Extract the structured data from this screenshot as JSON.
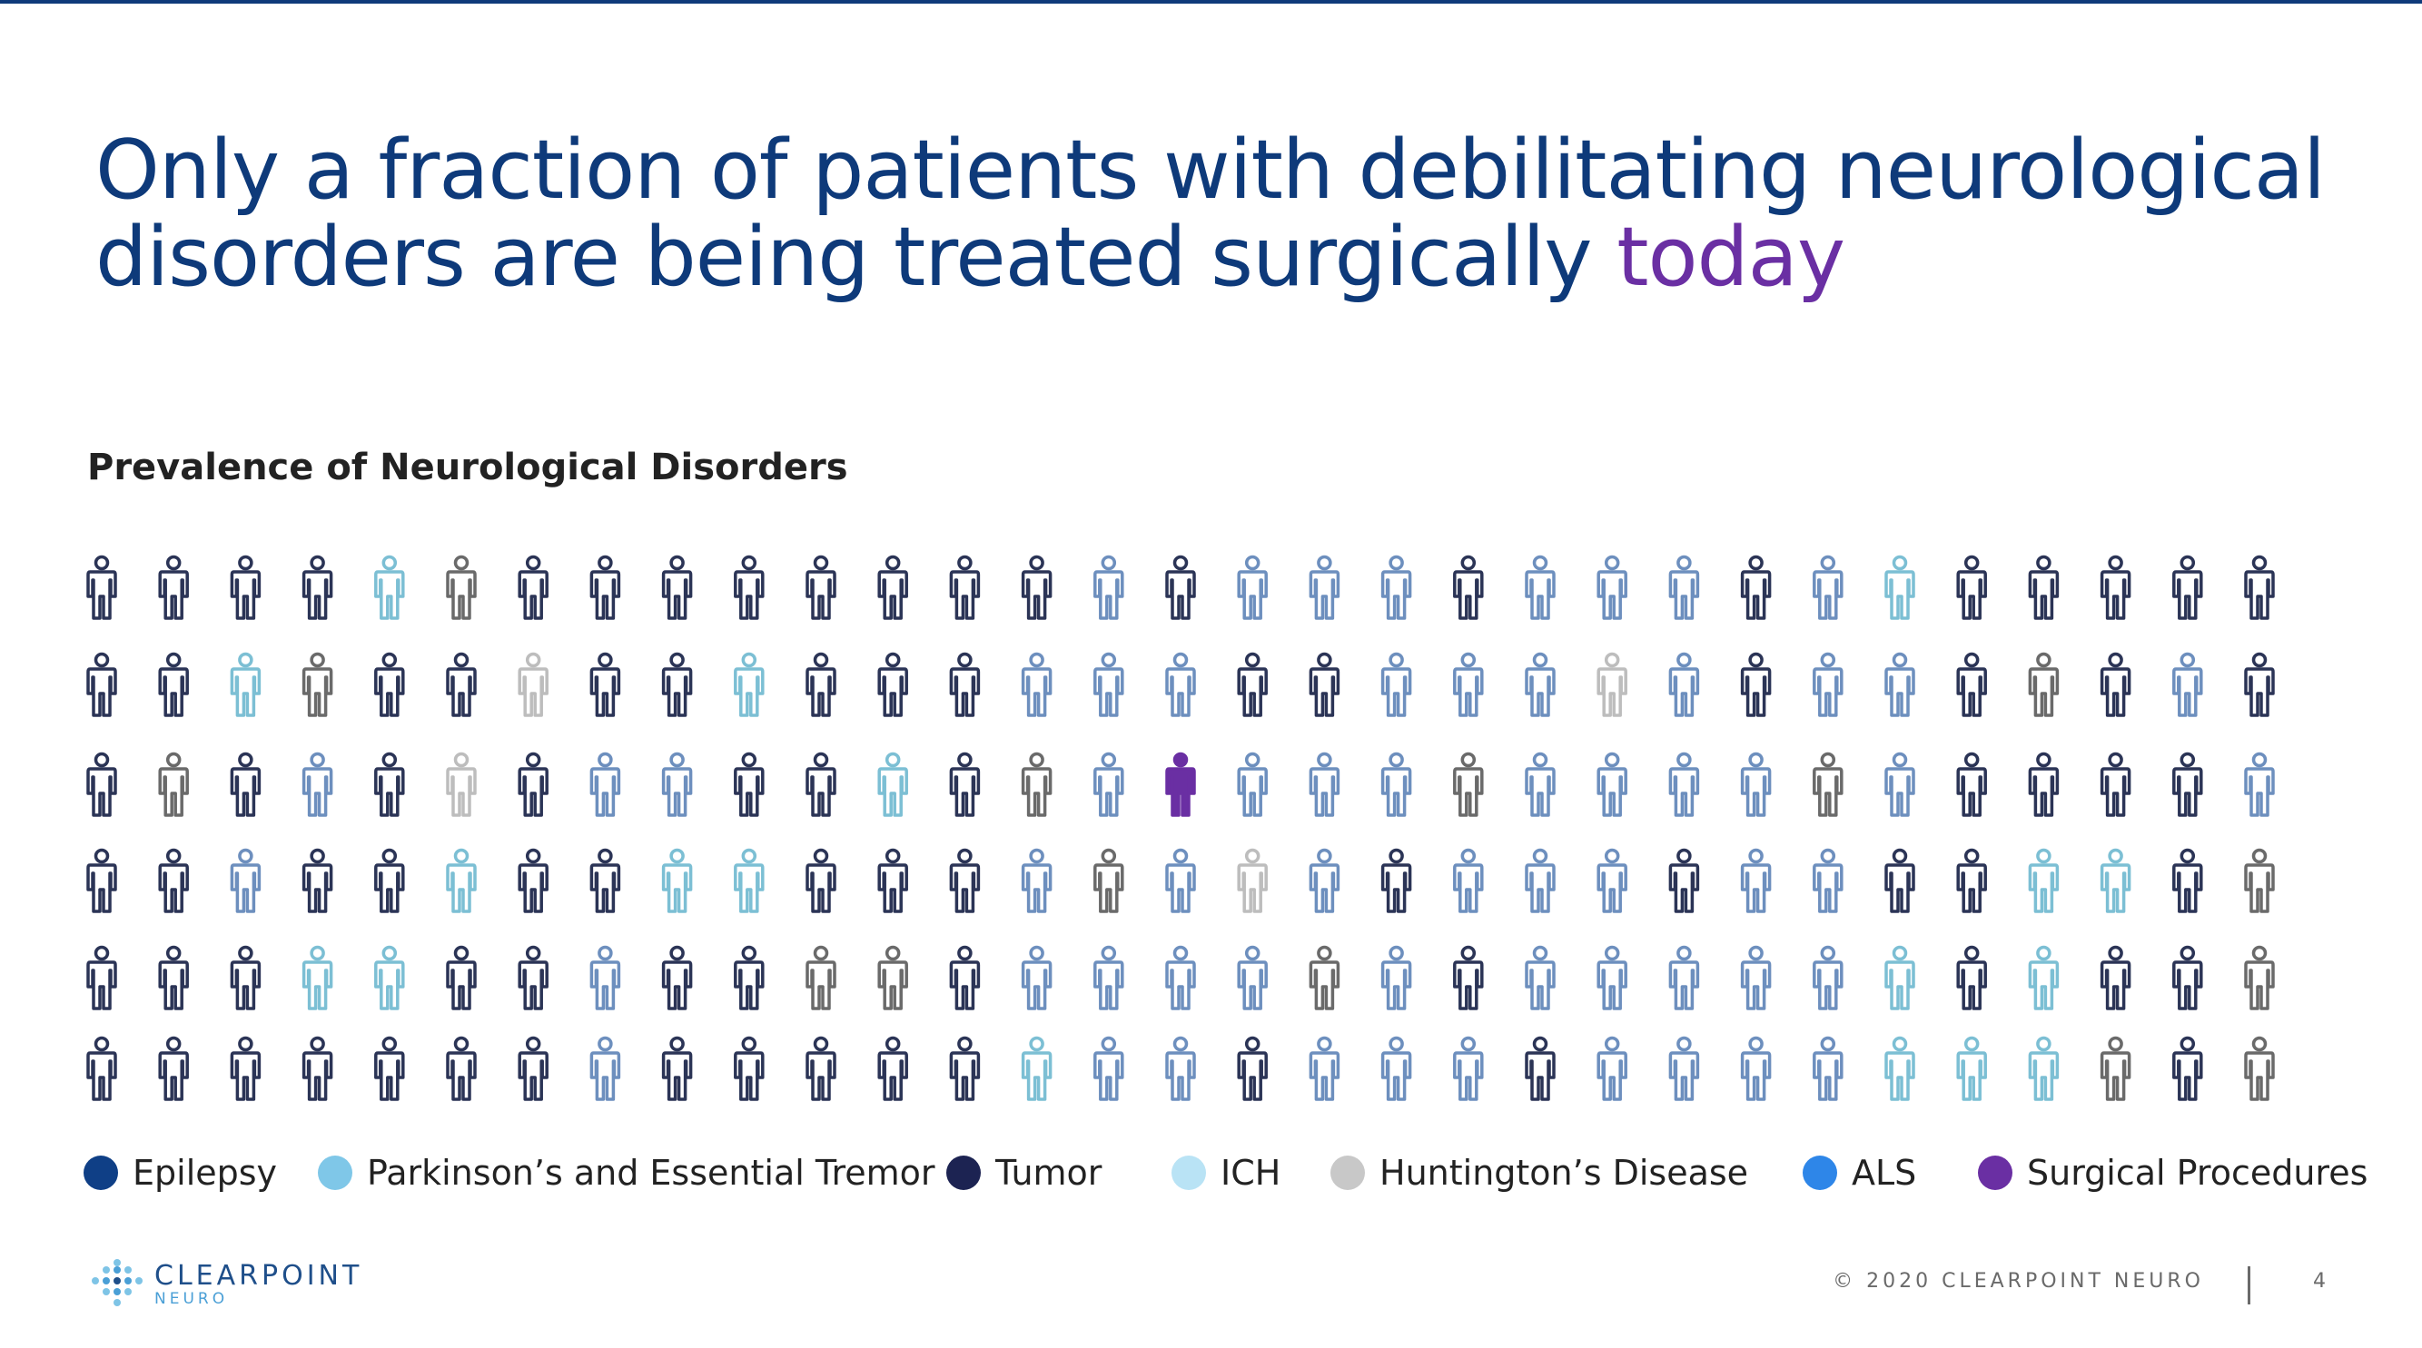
{
  "slide": {
    "title_main": "Only a fraction of patients with debilitating neurological disorders are being treated surgically ",
    "title_accent": "today",
    "logo_main": "CLEARPOINT",
    "logo_sub": "NEURO",
    "copyright": "© 2020 CLEARPOINT NEURO",
    "page_number": "4"
  },
  "chart_data": {
    "type": "pictogram",
    "title": "Prevalence of Neurological Disorders",
    "legend_position": "bottom",
    "columns": 31,
    "rows": 6,
    "legend": [
      {
        "key": "E",
        "name": "Epilepsy",
        "color": "#0f3f86"
      },
      {
        "key": "P",
        "name": "Parkinson’s and Essential Tremor",
        "color": "#7fc7e8"
      },
      {
        "key": "T",
        "name": "Tumor",
        "color": "#1c2352"
      },
      {
        "key": "I",
        "name": "ICH",
        "color": "#b9e3f5"
      },
      {
        "key": "H",
        "name": "Huntington’s Disease",
        "color": "#c8c8c8"
      },
      {
        "key": "A",
        "name": "ALS",
        "color": "#2e86e8"
      },
      {
        "key": "S",
        "name": "Surgical Procedures",
        "color": "#6a2fa3"
      }
    ],
    "figure_colors": {
      "N": "#2b3456",
      "B": "#6d8fbe",
      "G": "#6a6a6a",
      "L": "#bdbdbd",
      "C": "#7cbfd4",
      "S": "#6a2fa3"
    },
    "grid": [
      "NNNNCGNNNNNNNNBNBBBNBBBNBCNNNNN",
      "NNCGNNLNNCNNNBBBNNBBBLBNBBNGNBN",
      "NGNBNLNBBNNCNGBSBBBGBBBBGBNNNNB",
      "NNBNNCNNCCNNNBGBLBNBBBNBBNNCCNG",
      "NNNCCNNBNNGGNBBBBGBNBBBBBCNCNNG",
      "NNNNNNNBNNNNNCBBNBBBNBBBBCCCGNG"
    ]
  }
}
